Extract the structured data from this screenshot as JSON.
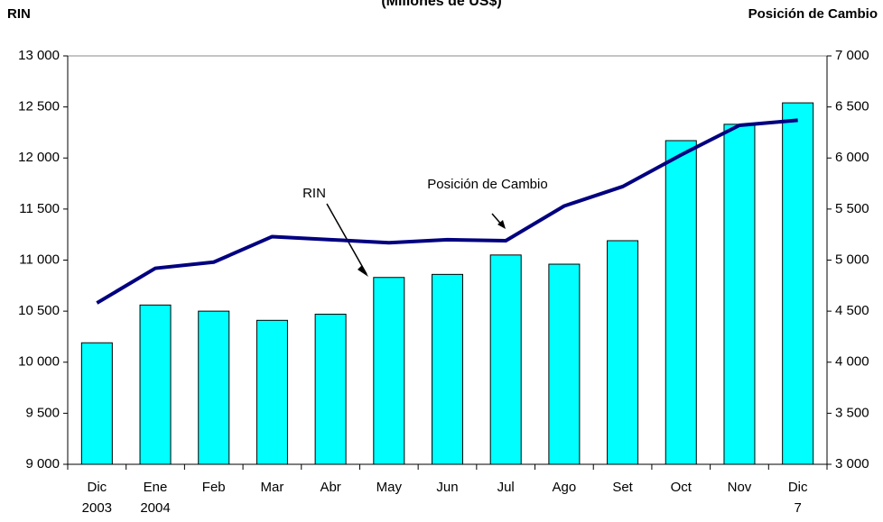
{
  "chart_data": {
    "type": "bar-line",
    "title": "(Millones de US$)",
    "y_label": "RIN",
    "y2_label": "Posición de Cambio",
    "categories": [
      "Dic\n2003",
      "Ene\n2004",
      "Feb",
      "Mar",
      "Abr",
      "May",
      "Jun",
      "Jul",
      "Ago",
      "Set",
      "Oct",
      "Nov",
      "Dic\n7"
    ],
    "series": [
      {
        "name": "RIN",
        "type": "bar",
        "color": "#00ffff",
        "values": [
          10190,
          10560,
          10500,
          10410,
          10470,
          10830,
          10860,
          11050,
          10960,
          11190,
          12170,
          12330,
          12540
        ]
      },
      {
        "name": "Posición de Cambio",
        "type": "line",
        "axis": "y2",
        "color": "#000080",
        "values": [
          4580,
          4920,
          4980,
          5230,
          5200,
          5170,
          5200,
          5190,
          5530,
          5720,
          6030,
          6320,
          6370
        ]
      }
    ],
    "ylim": [
      9000,
      13000
    ],
    "yticks": [
      {
        "value": 9000,
        "label": "9 000"
      },
      {
        "value": 9500,
        "label": "9 500"
      },
      {
        "value": 10000,
        "label": "10 000"
      },
      {
        "value": 10500,
        "label": "10 500"
      },
      {
        "value": 11000,
        "label": "11 000"
      },
      {
        "value": 11500,
        "label": "11 500"
      },
      {
        "value": 12000,
        "label": "12 000"
      },
      {
        "value": 12500,
        "label": "12 500"
      },
      {
        "value": 13000,
        "label": "13 000"
      }
    ],
    "y2lim": [
      3000,
      7000
    ],
    "y2ticks": [
      {
        "value": 3000,
        "label": "3 000"
      },
      {
        "value": 3500,
        "label": "3 500"
      },
      {
        "value": 4000,
        "label": "4 000"
      },
      {
        "value": 4500,
        "label": "4 500"
      },
      {
        "value": 5000,
        "label": "5 000"
      },
      {
        "value": 5500,
        "label": "5 500"
      },
      {
        "value": 6000,
        "label": "6 000"
      },
      {
        "value": 6500,
        "label": "6 500"
      },
      {
        "value": 7000,
        "label": "7 000"
      }
    ],
    "annotations": [
      "RIN",
      "Posición de Cambio"
    ]
  }
}
